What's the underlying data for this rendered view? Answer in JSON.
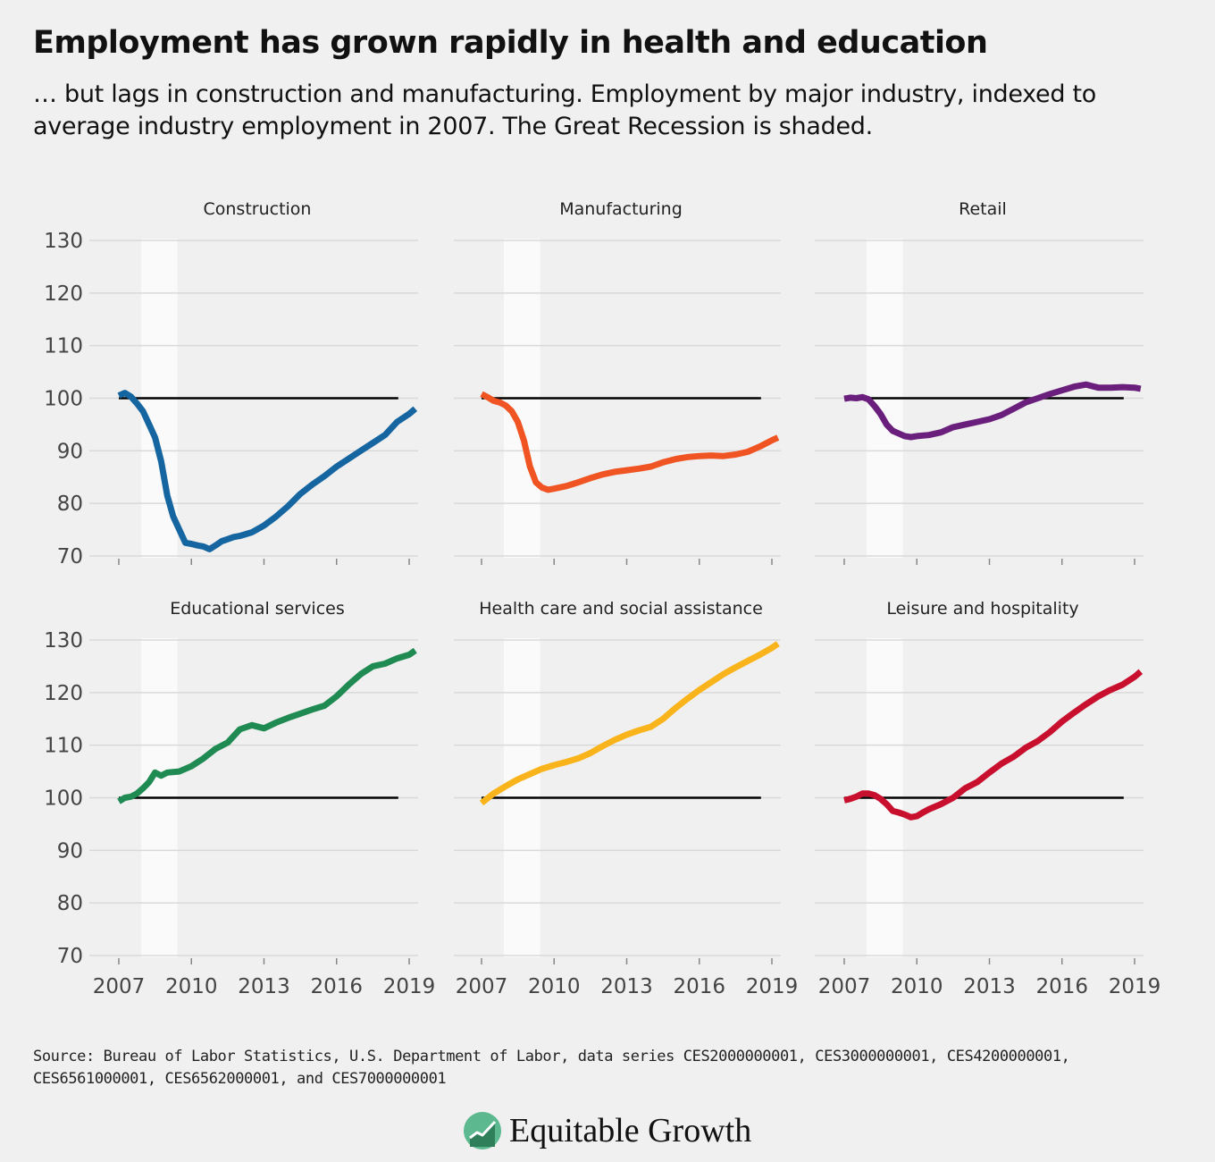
{
  "title": "Employment has grown rapidly in health and education",
  "subtitle": "… but lags in construction and manufacturing. Employment by major industry, indexed to average industry employment in 2007. The Great Recession is shaded.",
  "source": "Source: Bureau of Labor Statistics, U.S. Department of Labor, data series CES2000000001, CES3000000001, CES4200000001, CES6561000001, CES6562000001, and CES7000000001",
  "brand": {
    "name": "Equitable Growth",
    "logo_icon": "growth-chart-logo-icon",
    "logo_color": "#5cb88f"
  },
  "colors": {
    "background": "#f0f0f0",
    "gridline": "#d9d9d9",
    "recession_shade": "#fafafa",
    "baseline": "#000000"
  },
  "chart_data": [
    {
      "type": "line",
      "title": "Construction",
      "color": "#1565a0",
      "x_ticks": [
        2007,
        2010,
        2013,
        2016,
        2019
      ],
      "y_ticks": [
        70,
        80,
        90,
        100,
        110,
        120,
        130
      ],
      "ylim": [
        70,
        130
      ],
      "xlim": [
        2007,
        2019.3
      ],
      "baseline": 100,
      "recession": [
        2007.92,
        2009.42
      ],
      "x": [
        2007.0,
        2007.25,
        2007.5,
        2007.75,
        2008.0,
        2008.25,
        2008.5,
        2008.75,
        2009.0,
        2009.25,
        2009.5,
        2009.75,
        2010.0,
        2010.25,
        2010.5,
        2010.75,
        2011.0,
        2011.25,
        2011.5,
        2011.75,
        2012.0,
        2012.5,
        2013.0,
        2013.5,
        2014.0,
        2014.5,
        2015.0,
        2015.5,
        2016.0,
        2016.5,
        2017.0,
        2017.5,
        2018.0,
        2018.5,
        2019.0,
        2019.25
      ],
      "y": [
        100.5,
        101.0,
        100.3,
        99.0,
        97.5,
        95.0,
        92.5,
        88.0,
        81.5,
        77.5,
        75.0,
        72.5,
        72.3,
        72.0,
        71.8,
        71.3,
        72.0,
        72.8,
        73.2,
        73.6,
        73.8,
        74.5,
        75.8,
        77.5,
        79.5,
        81.8,
        83.6,
        85.2,
        87.0,
        88.5,
        90.0,
        91.5,
        93.0,
        95.5,
        97.0,
        98.0
      ]
    },
    {
      "type": "line",
      "title": "Manufacturing",
      "color": "#f05423",
      "x_ticks": [
        2007,
        2010,
        2013,
        2016,
        2019
      ],
      "y_ticks": [
        70,
        80,
        90,
        100,
        110,
        120,
        130
      ],
      "ylim": [
        70,
        130
      ],
      "xlim": [
        2007,
        2019.3
      ],
      "baseline": 100,
      "recession": [
        2007.92,
        2009.42
      ],
      "x": [
        2007.0,
        2007.25,
        2007.5,
        2007.75,
        2008.0,
        2008.25,
        2008.5,
        2008.75,
        2009.0,
        2009.25,
        2009.5,
        2009.75,
        2010.0,
        2010.5,
        2011.0,
        2011.5,
        2012.0,
        2012.5,
        2013.0,
        2013.5,
        2014.0,
        2014.5,
        2015.0,
        2015.5,
        2016.0,
        2016.5,
        2017.0,
        2017.5,
        2018.0,
        2018.5,
        2019.0,
        2019.25
      ],
      "y": [
        100.8,
        100.2,
        99.5,
        99.2,
        98.6,
        97.5,
        95.5,
        92.0,
        87.0,
        84.0,
        83.0,
        82.6,
        82.8,
        83.3,
        84.0,
        84.8,
        85.5,
        86.0,
        86.3,
        86.6,
        87.0,
        87.8,
        88.4,
        88.8,
        89.0,
        89.1,
        89.0,
        89.3,
        89.8,
        90.8,
        92.0,
        92.5
      ]
    },
    {
      "type": "line",
      "title": "Retail",
      "color": "#6b1f7c",
      "x_ticks": [
        2007,
        2010,
        2013,
        2016,
        2019
      ],
      "y_ticks": [
        70,
        80,
        90,
        100,
        110,
        120,
        130
      ],
      "ylim": [
        70,
        130
      ],
      "xlim": [
        2007,
        2019.3
      ],
      "baseline": 100,
      "recession": [
        2007.92,
        2009.42
      ],
      "x": [
        2007.0,
        2007.25,
        2007.5,
        2007.75,
        2008.0,
        2008.25,
        2008.5,
        2008.75,
        2009.0,
        2009.25,
        2009.5,
        2009.75,
        2010.0,
        2010.5,
        2011.0,
        2011.5,
        2012.0,
        2012.5,
        2013.0,
        2013.5,
        2014.0,
        2014.5,
        2015.0,
        2015.5,
        2016.0,
        2016.5,
        2017.0,
        2017.25,
        2017.5,
        2018.0,
        2018.5,
        2019.0,
        2019.25
      ],
      "y": [
        99.9,
        100.1,
        100.0,
        100.2,
        99.8,
        98.5,
        97.0,
        95.0,
        93.8,
        93.3,
        92.8,
        92.6,
        92.8,
        93.0,
        93.5,
        94.5,
        95.0,
        95.5,
        96.0,
        96.8,
        98.0,
        99.2,
        100.0,
        100.8,
        101.5,
        102.2,
        102.6,
        102.3,
        102.0,
        102.0,
        102.1,
        102.0,
        101.8
      ]
    },
    {
      "type": "line",
      "title": "Educational services",
      "color": "#1f8a52",
      "x_ticks": [
        2007,
        2010,
        2013,
        2016,
        2019
      ],
      "y_ticks": [
        70,
        80,
        90,
        100,
        110,
        120,
        130
      ],
      "ylim": [
        70,
        130
      ],
      "xlim": [
        2007,
        2019.3
      ],
      "baseline": 100,
      "recession": [
        2007.92,
        2009.42
      ],
      "x": [
        2007.0,
        2007.25,
        2007.5,
        2007.75,
        2008.0,
        2008.25,
        2008.5,
        2008.75,
        2009.0,
        2009.5,
        2010.0,
        2010.5,
        2011.0,
        2011.5,
        2012.0,
        2012.5,
        2013.0,
        2013.5,
        2014.0,
        2014.5,
        2015.0,
        2015.5,
        2016.0,
        2016.5,
        2017.0,
        2017.5,
        2018.0,
        2018.5,
        2019.0,
        2019.25
      ],
      "y": [
        99.3,
        100.0,
        100.2,
        100.8,
        101.8,
        103.0,
        104.8,
        104.2,
        104.8,
        105.0,
        106.0,
        107.5,
        109.3,
        110.5,
        113.0,
        113.8,
        113.2,
        114.3,
        115.2,
        116.0,
        116.8,
        117.5,
        119.3,
        121.5,
        123.5,
        125.0,
        125.5,
        126.5,
        127.2,
        128.0
      ]
    },
    {
      "type": "line",
      "title": "Health care and social assistance",
      "color": "#f9b41b",
      "x_ticks": [
        2007,
        2010,
        2013,
        2016,
        2019
      ],
      "y_ticks": [
        70,
        80,
        90,
        100,
        110,
        120,
        130
      ],
      "ylim": [
        70,
        130
      ],
      "xlim": [
        2007,
        2019.3
      ],
      "baseline": 100,
      "recession": [
        2007.92,
        2009.42
      ],
      "x": [
        2007.0,
        2007.5,
        2008.0,
        2008.5,
        2009.0,
        2009.5,
        2010.0,
        2010.5,
        2011.0,
        2011.5,
        2012.0,
        2012.5,
        2013.0,
        2013.5,
        2014.0,
        2014.5,
        2015.0,
        2015.5,
        2016.0,
        2016.5,
        2017.0,
        2017.5,
        2018.0,
        2018.5,
        2019.0,
        2019.25
      ],
      "y": [
        99.0,
        100.8,
        102.2,
        103.5,
        104.5,
        105.5,
        106.2,
        106.8,
        107.5,
        108.5,
        109.8,
        111.0,
        112.0,
        112.8,
        113.5,
        115.0,
        117.0,
        118.8,
        120.5,
        122.0,
        123.5,
        124.8,
        126.0,
        127.2,
        128.5,
        129.3
      ]
    },
    {
      "type": "line",
      "title": "Leisure and hospitality",
      "color": "#c8102e",
      "x_ticks": [
        2007,
        2010,
        2013,
        2016,
        2019
      ],
      "y_ticks": [
        70,
        80,
        90,
        100,
        110,
        120,
        130
      ],
      "ylim": [
        70,
        130
      ],
      "xlim": [
        2007,
        2019.3
      ],
      "baseline": 100,
      "recession": [
        2007.92,
        2009.42
      ],
      "x": [
        2007.0,
        2007.25,
        2007.5,
        2007.75,
        2008.0,
        2008.25,
        2008.5,
        2008.75,
        2009.0,
        2009.25,
        2009.5,
        2009.75,
        2010.0,
        2010.25,
        2010.5,
        2011.0,
        2011.5,
        2012.0,
        2012.5,
        2013.0,
        2013.5,
        2014.0,
        2014.5,
        2015.0,
        2015.5,
        2016.0,
        2016.5,
        2017.0,
        2017.5,
        2018.0,
        2018.5,
        2019.0,
        2019.25
      ],
      "y": [
        99.5,
        99.8,
        100.2,
        100.8,
        100.8,
        100.5,
        99.8,
        98.8,
        97.5,
        97.2,
        96.8,
        96.3,
        96.5,
        97.2,
        97.8,
        98.8,
        100.0,
        101.8,
        103.0,
        104.8,
        106.5,
        107.8,
        109.5,
        110.8,
        112.5,
        114.5,
        116.2,
        117.8,
        119.3,
        120.5,
        121.5,
        123.0,
        124.0
      ]
    }
  ]
}
